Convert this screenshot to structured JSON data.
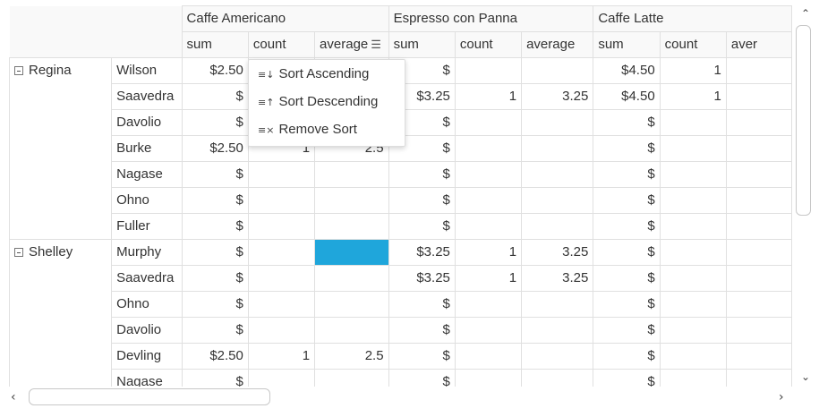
{
  "columns": {
    "groups": [
      "Caffe Americano",
      "Espresso con Panna",
      "Caffe Latte"
    ],
    "measures": [
      "sum",
      "count",
      "average",
      "sum",
      "count",
      "average",
      "sum",
      "count",
      "aver"
    ]
  },
  "groups": [
    {
      "name": "Regina",
      "rows": [
        [
          "Wilson",
          "$2.50",
          "",
          "",
          "$",
          "",
          "",
          "$4.50",
          "1",
          ""
        ],
        [
          "Saavedra",
          "$",
          "",
          "",
          "$3.25",
          "1",
          "3.25",
          "$4.50",
          "1",
          ""
        ],
        [
          "Davolio",
          "$",
          "",
          "",
          "$",
          "",
          "",
          "$",
          "",
          ""
        ],
        [
          "Burke",
          "$2.50",
          "1",
          "2.5",
          "$",
          "",
          "",
          "$",
          "",
          ""
        ],
        [
          "Nagase",
          "$",
          "",
          "",
          "$",
          "",
          "",
          "$",
          "",
          ""
        ],
        [
          "Ohno",
          "$",
          "",
          "",
          "$",
          "",
          "",
          "$",
          "",
          ""
        ],
        [
          "Fuller",
          "$",
          "",
          "",
          "$",
          "",
          "",
          "$",
          "",
          ""
        ]
      ]
    },
    {
      "name": "Shelley",
      "rows": [
        [
          "Murphy",
          "$",
          "",
          "",
          "$3.25",
          "1",
          "3.25",
          "$",
          "",
          ""
        ],
        [
          "Saavedra",
          "$",
          "",
          "",
          "$3.25",
          "1",
          "3.25",
          "$",
          "",
          ""
        ],
        [
          "Ohno",
          "$",
          "",
          "",
          "$",
          "",
          "",
          "$",
          "",
          ""
        ],
        [
          "Davolio",
          "$",
          "",
          "",
          "$",
          "",
          "",
          "$",
          "",
          ""
        ],
        [
          "Devling",
          "$2.50",
          "1",
          "2.5",
          "$",
          "",
          "",
          "$",
          "",
          ""
        ],
        [
          "Nagase",
          "$",
          "",
          "",
          "$",
          "",
          "",
          "$",
          "",
          ""
        ]
      ]
    }
  ],
  "menu": {
    "items": [
      {
        "icon": "≡↓",
        "label": "Sort Ascending"
      },
      {
        "icon": "≡↑",
        "label": "Sort Descending"
      },
      {
        "icon": "≡×",
        "label": "Remove Sort"
      }
    ]
  },
  "selected_color": "#1fa6db",
  "scroll": {
    "up": "⌃",
    "down": "⌄",
    "left": "‹",
    "right": "›"
  }
}
